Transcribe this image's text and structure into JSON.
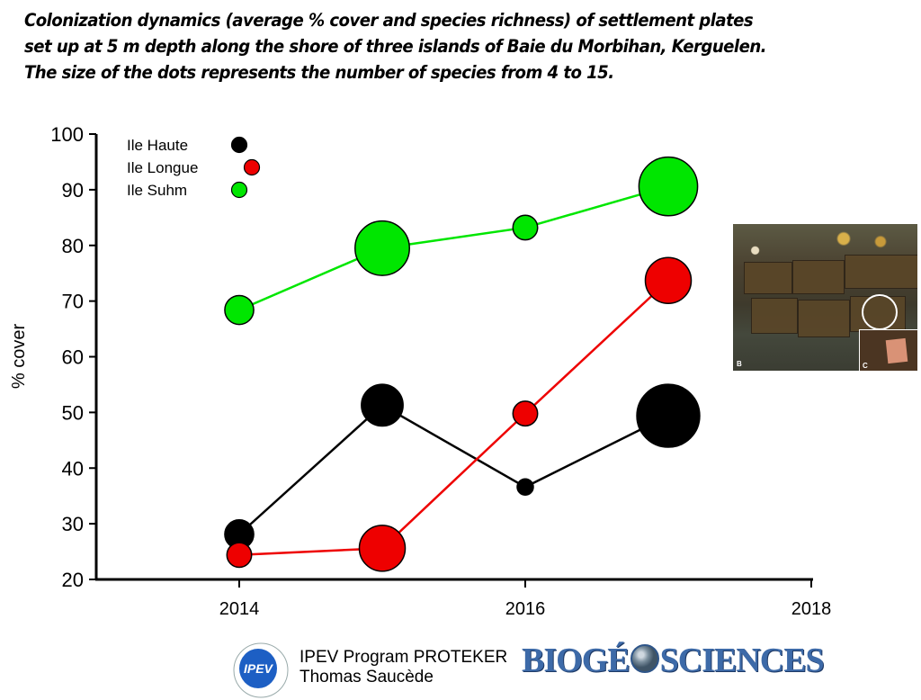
{
  "title_lines": [
    "Colonization dynamics (average % cover and species richness) of settlement plates",
    "set up at 5 m depth along the shore of three islands of Baie du Morbihan, Kerguelen.",
    "The size of the dots represents the number of species from 4 to 15."
  ],
  "chart_data": {
    "type": "scatter",
    "subtype": "line-bubble",
    "title": "Colonization dynamics (average % cover and species richness) of settlement plates set up at 5 m depth along the shore of three islands of Baie du Morbihan, Kerguelen.",
    "note": "The size of the dots represents the number of species from 4 to 15.",
    "xlabel": "",
    "ylabel": "% cover",
    "xlim": [
      2013,
      2018
    ],
    "ylim": [
      20,
      100
    ],
    "xticks": [
      2014,
      2016,
      2018
    ],
    "yticks": [
      20,
      30,
      40,
      50,
      60,
      70,
      80,
      90,
      100
    ],
    "grid": false,
    "legend_position": "top-left",
    "x": [
      2014,
      2015,
      2016,
      2017
    ],
    "series": [
      {
        "name": "Ile Haute",
        "color": "#000000",
        "values": [
          28.1,
          51.3,
          36.6,
          49.4
        ],
        "species": [
          7,
          10,
          4,
          15
        ]
      },
      {
        "name": "Ile Longue",
        "color": "#ee0000",
        "values": [
          24.4,
          25.6,
          49.8,
          73.7
        ],
        "species": [
          6,
          11,
          6,
          11
        ]
      },
      {
        "name": "Ile Suhm",
        "color": "#00e600",
        "values": [
          68.4,
          79.5,
          83.2,
          90.6
        ],
        "species": [
          7,
          13,
          6,
          14
        ]
      }
    ]
  },
  "photo": {
    "label_b": "B",
    "label_c": "C"
  },
  "footer": {
    "line1": "IPEV Program PROTEKER",
    "line2": "Thomas Saucède",
    "ipev_logo_text": "IPEV",
    "biogeosciences_left": "BIOGÉ",
    "biogeosciences_right": "SCIENCES"
  }
}
